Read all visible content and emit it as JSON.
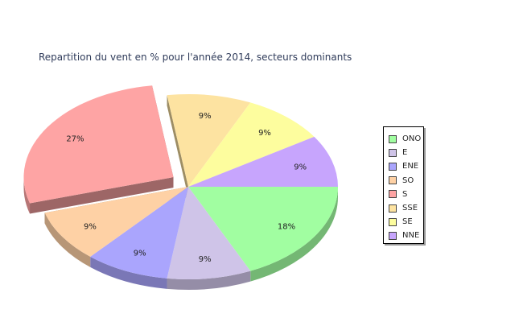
{
  "chart_data": {
    "type": "pie",
    "title": "Repartition du vent en % pour l'année 2014, secteurs dominants",
    "legend_position": "right",
    "slices": [
      {
        "name": "ONO",
        "value": 18,
        "label": "18%",
        "color": "#a1fea1"
      },
      {
        "name": "E",
        "value": 9,
        "label": "9%",
        "color": "#cfc4e8"
      },
      {
        "name": "ENE",
        "value": 9,
        "label": "9%",
        "color": "#aaa5fd"
      },
      {
        "name": "SO",
        "value": 9,
        "label": "9%",
        "color": "#fed1a5"
      },
      {
        "name": "S",
        "value": 27,
        "label": "27%",
        "color": "#fea4a4",
        "exploded": true
      },
      {
        "name": "SSE",
        "value": 9,
        "label": "9%",
        "color": "#fde3a1"
      },
      {
        "name": "SE",
        "value": 9,
        "label": "9%",
        "color": "#fdfd9e"
      },
      {
        "name": "NNE",
        "value": 9,
        "label": "9%",
        "color": "#c7a5fd"
      }
    ]
  }
}
